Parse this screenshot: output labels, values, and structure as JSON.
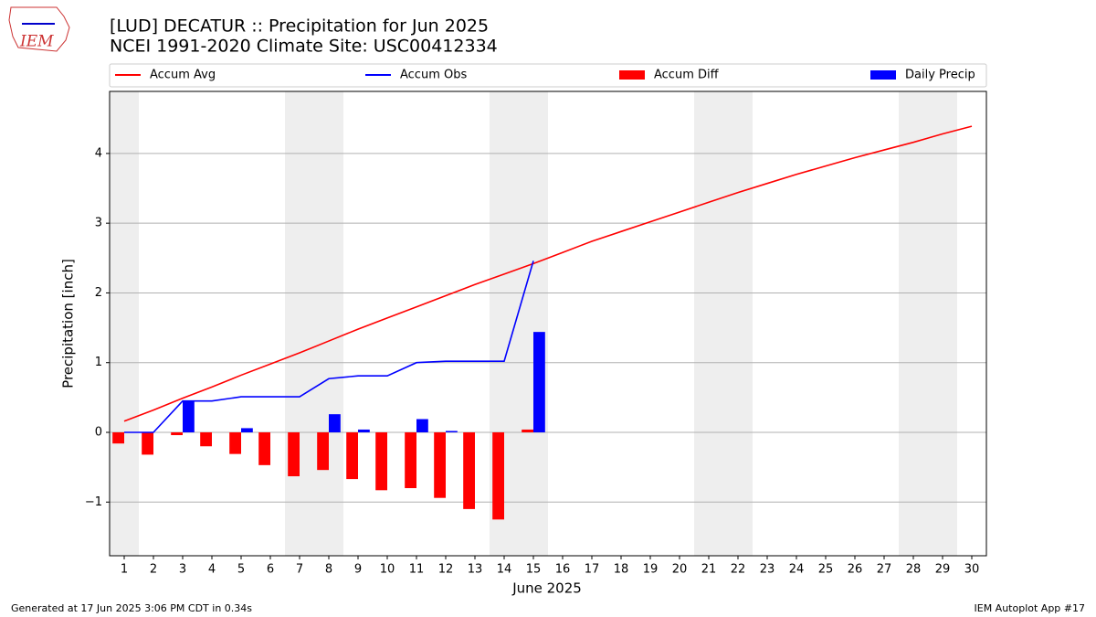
{
  "chart_data": {
    "type": "line",
    "logo_text": "IEM",
    "title": "[LUD] DECATUR :: Precipitation for Jun 2025",
    "subtitle": "NCEI 1991-2020 Climate Site: USC00412334",
    "xlabel": "June 2025",
    "ylabel": "Precipitation [inch]",
    "footer_left": "Generated at 17 Jun 2025 3:06 PM CDT in 0.34s",
    "footer_right": "IEM Autoplot App #17",
    "x": [
      1,
      2,
      3,
      4,
      5,
      6,
      7,
      8,
      9,
      10,
      11,
      12,
      13,
      14,
      15,
      16,
      17,
      18,
      19,
      20,
      21,
      22,
      23,
      24,
      25,
      26,
      27,
      28,
      29,
      30
    ],
    "xlim": [
      0.5,
      30.5
    ],
    "xticks": [
      1,
      2,
      3,
      4,
      5,
      6,
      7,
      8,
      9,
      10,
      11,
      12,
      13,
      14,
      15,
      16,
      17,
      18,
      19,
      20,
      21,
      22,
      23,
      24,
      25,
      26,
      27,
      28,
      29,
      30
    ],
    "ylim": [
      -1.77,
      4.89
    ],
    "yticks": [
      {
        "value": -1,
        "label": "−1"
      },
      0,
      1,
      2,
      3,
      4
    ],
    "grid": true,
    "shaded_days": [
      1,
      7,
      8,
      14,
      15,
      21,
      22,
      28,
      29
    ],
    "legend": "top",
    "series": [
      {
        "name": "Accum Avg",
        "kind": "line",
        "color": "#ff0000",
        "values": [
          0.16,
          0.32,
          0.49,
          0.65,
          0.82,
          0.98,
          1.14,
          1.31,
          1.48,
          1.64,
          1.8,
          1.96,
          2.12,
          2.27,
          2.42,
          2.58,
          2.74,
          2.88,
          3.02,
          3.16,
          3.3,
          3.44,
          3.57,
          3.7,
          3.82,
          3.94,
          4.05,
          4.16,
          4.28,
          4.39
        ]
      },
      {
        "name": "Accum Obs",
        "kind": "line",
        "color": "#0000ff",
        "values": [
          0,
          0,
          0.45,
          0.45,
          0.51,
          0.51,
          0.51,
          0.77,
          0.81,
          0.81,
          1.0,
          1.02,
          1.02,
          1.02,
          2.46,
          null,
          null,
          null,
          null,
          null,
          null,
          null,
          null,
          null,
          null,
          null,
          null,
          null,
          null,
          null
        ]
      },
      {
        "name": "Accum Diff",
        "kind": "bar",
        "offset": -1,
        "color": "#ff0000",
        "values": [
          -0.16,
          -0.32,
          -0.04,
          -0.2,
          -0.31,
          -0.47,
          -0.63,
          -0.54,
          -0.67,
          -0.83,
          -0.8,
          -0.94,
          -1.1,
          -1.25,
          0.04,
          null,
          null,
          null,
          null,
          null,
          null,
          null,
          null,
          null,
          null,
          null,
          null,
          null,
          null,
          null
        ]
      },
      {
        "name": "Daily Precip",
        "kind": "bar",
        "offset": 0,
        "color": "#0000ff",
        "values": [
          0,
          0,
          0.45,
          0,
          0.06,
          0,
          0,
          0.26,
          0.04,
          0,
          0.19,
          0.02,
          0,
          0,
          1.44,
          null,
          null,
          null,
          null,
          null,
          null,
          null,
          null,
          null,
          null,
          null,
          null,
          null,
          null,
          null
        ]
      }
    ]
  }
}
